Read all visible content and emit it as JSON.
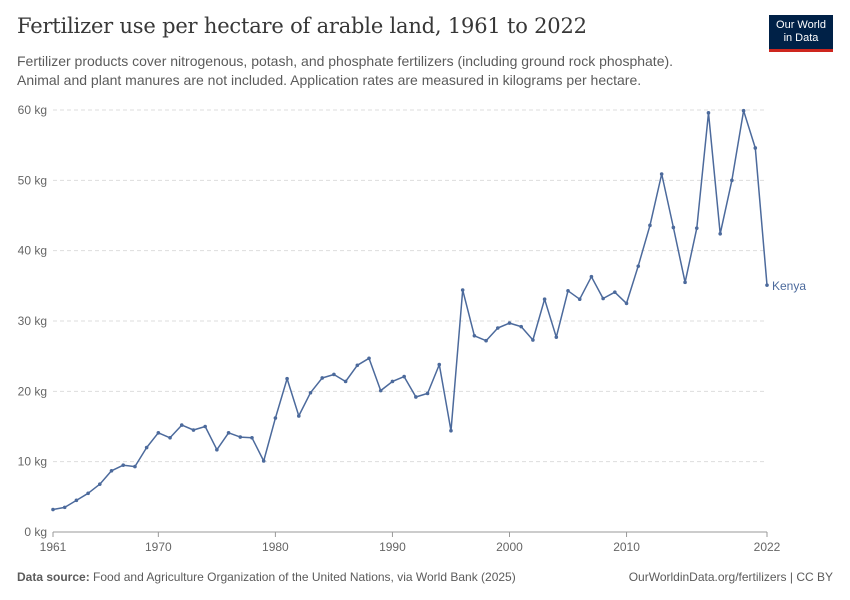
{
  "header": {
    "title": "Fertilizer use per hectare of arable land, 1961 to 2022",
    "subtitle_line1": "Fertilizer products cover nitrogenous, potash, and phosphate fertilizers (including ground rock phosphate).",
    "subtitle_line2": "Animal and plant manures are not included. Application rates are measured in kilograms per hectare.",
    "logo_line1": "Our World",
    "logo_line2": "in Data"
  },
  "footer": {
    "source_label": "Data source:",
    "source_text": "Food and Agriculture Organization of the United Nations, via World Bank (2025)",
    "link": "OurWorldinData.org/fertilizers | CC BY"
  },
  "colors": {
    "series": "#4c6a9c",
    "grid": "#dddddd",
    "axis_text": "#666666",
    "brand": "#002147",
    "brand_accent": "#ce261e"
  },
  "chart_data": {
    "type": "line",
    "x": [
      1961,
      1962,
      1963,
      1964,
      1965,
      1966,
      1967,
      1968,
      1969,
      1970,
      1971,
      1972,
      1973,
      1974,
      1975,
      1976,
      1977,
      1978,
      1979,
      1980,
      1981,
      1982,
      1983,
      1984,
      1985,
      1986,
      1987,
      1988,
      1989,
      1990,
      1991,
      1992,
      1993,
      1994,
      1995,
      1996,
      1997,
      1998,
      1999,
      2000,
      2001,
      2002,
      2003,
      2004,
      2005,
      2006,
      2007,
      2008,
      2009,
      2010,
      2011,
      2012,
      2013,
      2014,
      2015,
      2016,
      2017,
      2018,
      2019,
      2020,
      2021,
      2022
    ],
    "series": [
      {
        "name": "Kenya",
        "values": [
          3.2,
          3.5,
          4.5,
          5.5,
          6.8,
          8.7,
          9.5,
          9.3,
          12.0,
          14.1,
          13.4,
          15.2,
          14.5,
          15.0,
          11.7,
          14.1,
          13.5,
          13.4,
          10.1,
          16.2,
          21.8,
          16.5,
          19.8,
          21.9,
          22.4,
          21.4,
          23.7,
          24.7,
          20.1,
          21.4,
          22.1,
          19.2,
          19.7,
          23.8,
          14.4,
          34.4,
          27.9,
          27.2,
          29.0,
          29.7,
          29.2,
          27.3,
          33.1,
          27.7,
          34.3,
          33.1,
          36.3,
          33.2,
          34.1,
          32.5,
          37.8,
          43.6,
          50.9,
          43.3,
          35.5,
          43.2,
          59.6,
          42.4,
          50.0,
          59.9,
          54.6,
          35.1
        ]
      }
    ],
    "yticks": [
      "0 kg",
      "10 kg",
      "20 kg",
      "30 kg",
      "40 kg",
      "50 kg",
      "60 kg"
    ],
    "xticks": [
      "1961",
      "1970",
      "1980",
      "1990",
      "2000",
      "2010",
      "2022"
    ],
    "xlim": [
      1961,
      2022
    ],
    "ylim": [
      0,
      60
    ],
    "grid": true
  }
}
